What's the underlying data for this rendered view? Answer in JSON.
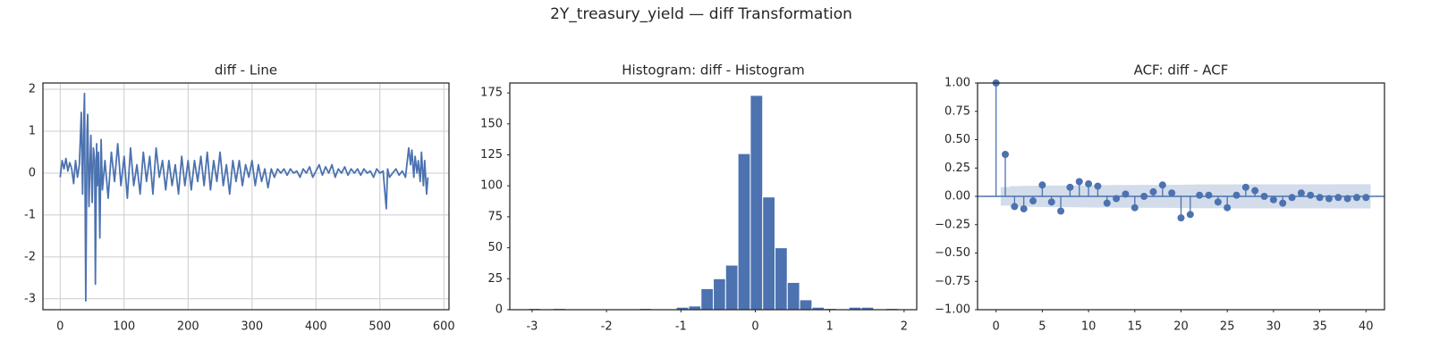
{
  "title": "2Y_treasury_yield — diff Transformation",
  "chart_data": [
    {
      "type": "line",
      "title": "diff - Line",
      "color": "#4c72b0",
      "grid": true,
      "x": [
        0,
        3,
        6,
        9,
        12,
        15,
        18,
        21,
        24,
        27,
        30,
        33,
        35,
        37,
        38,
        40,
        42,
        43,
        45,
        47,
        48,
        50,
        52,
        54,
        55,
        57,
        58,
        60,
        62,
        64,
        66,
        70,
        75,
        80,
        85,
        90,
        95,
        100,
        105,
        110,
        115,
        120,
        125,
        130,
        135,
        140,
        145,
        150,
        155,
        160,
        165,
        170,
        175,
        180,
        185,
        190,
        195,
        200,
        205,
        210,
        215,
        220,
        225,
        230,
        235,
        240,
        245,
        250,
        255,
        260,
        265,
        270,
        275,
        280,
        285,
        290,
        295,
        300,
        305,
        310,
        315,
        320,
        325,
        330,
        335,
        340,
        345,
        350,
        355,
        360,
        365,
        370,
        375,
        380,
        385,
        390,
        395,
        400,
        405,
        410,
        415,
        420,
        425,
        430,
        435,
        440,
        445,
        450,
        455,
        460,
        465,
        470,
        475,
        480,
        485,
        490,
        495,
        500,
        505,
        510,
        512,
        515,
        520,
        525,
        530,
        535,
        540,
        545,
        548,
        550,
        553,
        555,
        558,
        560,
        563,
        565,
        568,
        570,
        573,
        575
      ],
      "values": [
        -0.1,
        0.3,
        0.1,
        0.35,
        0.05,
        0.25,
        0.1,
        -0.25,
        0.3,
        -0.1,
        0.2,
        1.45,
        -0.5,
        1.3,
        1.9,
        -3.05,
        1.0,
        1.4,
        -0.8,
        0.4,
        0.9,
        -0.7,
        0.6,
        0.3,
        -2.65,
        0.7,
        -0.3,
        0.5,
        -1.55,
        0.8,
        -0.4,
        0.3,
        -0.6,
        0.5,
        -0.2,
        0.7,
        -0.3,
        0.4,
        -0.6,
        0.6,
        -0.3,
        0.2,
        -0.5,
        0.5,
        -0.2,
        0.4,
        -0.5,
        0.6,
        -0.1,
        0.3,
        -0.4,
        0.3,
        -0.3,
        0.2,
        -0.5,
        0.4,
        -0.3,
        0.3,
        -0.4,
        0.3,
        -0.2,
        0.4,
        -0.3,
        0.5,
        -0.4,
        0.3,
        -0.2,
        0.5,
        -0.3,
        0.2,
        -0.5,
        0.3,
        -0.2,
        0.3,
        -0.3,
        0.2,
        -0.1,
        0.3,
        -0.3,
        0.2,
        -0.2,
        0.1,
        -0.35,
        0.1,
        -0.1,
        0.1,
        0.0,
        0.1,
        -0.05,
        0.1,
        0.0,
        0.05,
        -0.1,
        0.1,
        0.0,
        0.15,
        -0.1,
        0.05,
        0.2,
        -0.05,
        0.15,
        0.0,
        0.2,
        -0.1,
        0.1,
        0.0,
        0.15,
        -0.05,
        0.1,
        0.0,
        0.1,
        -0.05,
        0.1,
        0.0,
        0.05,
        -0.1,
        0.1,
        0.0,
        0.05,
        -0.85,
        0.1,
        -0.1,
        0.0,
        0.1,
        -0.05,
        0.05,
        -0.1,
        0.6,
        0.2,
        0.55,
        -0.1,
        0.4,
        0.0,
        0.3,
        -0.2,
        0.5,
        -0.3,
        0.3,
        -0.5,
        -0.1
      ],
      "xlim": [
        -27,
        608
      ],
      "xticks": [
        0,
        100,
        200,
        300,
        400,
        500,
        600
      ],
      "ylim": [
        -3.26,
        2.15
      ],
      "yticks": [
        -3,
        -2,
        -1,
        0,
        1,
        2
      ]
    },
    {
      "type": "histogram",
      "title": "Histogram: diff - Histogram",
      "color": "#4c72b0",
      "grid": false,
      "bins": [
        -3.05,
        -2.884,
        -2.719,
        -2.553,
        -2.387,
        -2.221,
        -2.056,
        -1.89,
        -1.724,
        -1.559,
        -1.393,
        -1.227,
        -1.062,
        -0.896,
        -0.73,
        -0.564,
        -0.399,
        -0.233,
        -0.067,
        0.099,
        0.265,
        0.43,
        0.596,
        0.762,
        0.928,
        1.093,
        1.259,
        1.425,
        1.591,
        1.756,
        1.922
      ],
      "counts": [
        1,
        0,
        1,
        0,
        0,
        0,
        0,
        0,
        0,
        1,
        0,
        0,
        2,
        3,
        17,
        25,
        36,
        126,
        173,
        91,
        50,
        22,
        8,
        2,
        1,
        0,
        2,
        2,
        0,
        1
      ],
      "xlim": [
        -3.3,
        2.17
      ],
      "xticks": [
        -3,
        -2,
        -1,
        0,
        1,
        2
      ],
      "ylim": [
        0,
        183
      ],
      "yticks": [
        0,
        25,
        50,
        75,
        100,
        125,
        150,
        175
      ]
    },
    {
      "type": "acf",
      "title": "ACF: diff - ACF",
      "color": "#4c72b0",
      "band_color": "#4c72b0",
      "grid": false,
      "lags": [
        0,
        1,
        2,
        3,
        4,
        5,
        6,
        7,
        8,
        9,
        10,
        11,
        12,
        13,
        14,
        15,
        16,
        17,
        18,
        19,
        20,
        21,
        22,
        23,
        24,
        25,
        26,
        27,
        28,
        29,
        30,
        31,
        32,
        33,
        34,
        35,
        36,
        37,
        38,
        39,
        40
      ],
      "values": [
        1.0,
        0.37,
        -0.09,
        -0.11,
        -0.04,
        0.1,
        -0.05,
        -0.13,
        0.08,
        0.13,
        0.11,
        0.09,
        -0.06,
        -0.02,
        0.02,
        -0.1,
        0.0,
        0.04,
        0.1,
        0.03,
        -0.19,
        -0.16,
        0.01,
        0.01,
        -0.05,
        -0.1,
        0.01,
        0.08,
        0.05,
        0.0,
        -0.03,
        -0.06,
        -0.01,
        0.03,
        0.01,
        -0.01,
        -0.02,
        -0.01,
        -0.02,
        -0.01,
        -0.01
      ],
      "confidence": [
        null,
        0.082,
        0.09,
        0.092,
        0.093,
        0.094,
        0.095,
        0.095,
        0.096,
        0.097,
        0.098,
        0.099,
        0.099,
        0.1,
        0.1,
        0.1,
        0.101,
        0.101,
        0.101,
        0.102,
        0.102,
        0.104,
        0.105,
        0.105,
        0.105,
        0.105,
        0.106,
        0.106,
        0.106,
        0.106,
        0.106,
        0.106,
        0.106,
        0.106,
        0.106,
        0.106,
        0.106,
        0.107,
        0.107,
        0.107,
        0.107
      ],
      "xlim": [
        -2,
        42
      ],
      "xticks": [
        0,
        5,
        10,
        15,
        20,
        25,
        30,
        35,
        40
      ],
      "ylim": [
        -1,
        1
      ],
      "yticks": [
        {
          "value": -1,
          "label": "−1.00"
        },
        {
          "value": -0.75,
          "label": "−0.75"
        },
        {
          "value": -0.5,
          "label": "−0.50"
        },
        {
          "value": -0.25,
          "label": "−0.25"
        },
        {
          "value": 0,
          "label": "0.00"
        },
        {
          "value": 0.25,
          "label": "0.25"
        },
        {
          "value": 0.5,
          "label": "0.50"
        },
        {
          "value": 0.75,
          "label": "0.75"
        },
        {
          "value": 1,
          "label": "1.00"
        }
      ]
    }
  ]
}
